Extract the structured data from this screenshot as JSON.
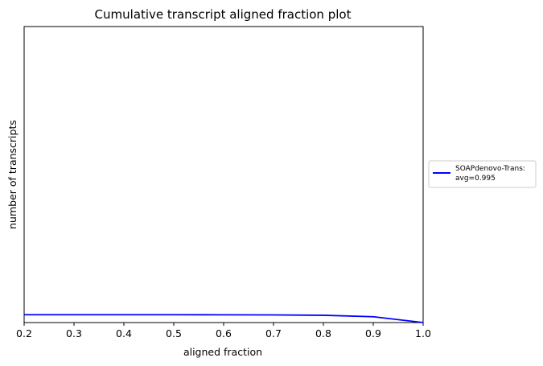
{
  "chart_data": {
    "type": "line",
    "title": "Cumulative transcript aligned fraction plot",
    "xlabel": "aligned fraction",
    "ylabel": "number of transcripts",
    "xlim": [
      0.2,
      1.0
    ],
    "x_ticks": [
      "0.2",
      "0.3",
      "0.4",
      "0.5",
      "0.6",
      "0.7",
      "0.8",
      "0.9",
      "1.0"
    ],
    "y_ticks": [],
    "grid": false,
    "legend_position": "right",
    "series": [
      {
        "name": "SOAPdenovo-Trans:",
        "name_line2": "avg=0.995",
        "color": "#0000ff",
        "x": [
          0.2,
          0.3,
          0.4,
          0.5,
          0.6,
          0.7,
          0.8,
          0.9,
          1.0
        ],
        "y": [
          0.0265,
          0.0265,
          0.0265,
          0.0264,
          0.0262,
          0.0258,
          0.0246,
          0.0196,
          0.0
        ]
      }
    ]
  }
}
